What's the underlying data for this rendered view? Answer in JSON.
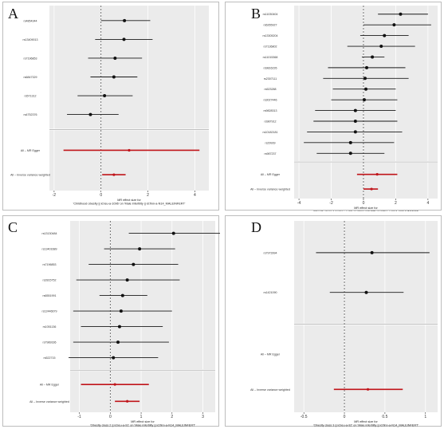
{
  "colors": {
    "panel_bg": "#ebebeb",
    "grid": "#ffffff",
    "point": "#111111",
    "snp_line": "#1a1a1a",
    "summary": "#c0141a",
    "zero_line": "#555555"
  },
  "chart_data": [
    {
      "panel": "A",
      "type": "forest",
      "xlabel": "MR effect size for\n'Childhood obesity || id:ieu-a-1096' on 'Male infertility || id:finn-a-N14_MALEINFERT'",
      "xlim": [
        -2.2,
        4.6
      ],
      "xticks": [
        -2,
        0,
        2,
        4
      ],
      "snps": [
        {
          "label": "rs4854344",
          "b": 1.0,
          "lo": 0.0,
          "hi": 2.1
        },
        {
          "label": "rs13409013",
          "b": 0.98,
          "lo": -0.25,
          "hi": 2.2
        },
        {
          "label": "rs7196853",
          "b": 0.6,
          "lo": -0.55,
          "hi": 1.75
        },
        {
          "label": "rs6847329",
          "b": 0.55,
          "lo": -0.45,
          "hi": 1.55
        },
        {
          "label": "rs571312",
          "b": 0.15,
          "lo": -1.0,
          "hi": 1.35
        },
        {
          "label": "rs4752376",
          "b": -0.45,
          "lo": -1.45,
          "hi": 0.75
        }
      ],
      "summary": [
        {
          "label": "All – MR Egger",
          "b": 1.2,
          "lo": -1.6,
          "hi": 4.2
        },
        {
          "label": "All – Inverse variance weighted",
          "b": 0.55,
          "lo": 0.05,
          "hi": 1.05
        }
      ]
    },
    {
      "panel": "B",
      "type": "forest",
      "xlabel": "MR effect size for\n'Obesity class 1 || id:ieu-a-90' on 'Male infertility || id:finn-a-N14_MALEINFERT'",
      "xlim": [
        -4.3,
        4.6
      ],
      "xticks": [
        -4,
        -2,
        0,
        2,
        4
      ],
      "snps": [
        {
          "label": "rs11030404",
          "b": 2.3,
          "lo": 0.9,
          "hi": 4.0
        },
        {
          "label": "rs6265927",
          "b": 1.9,
          "lo": 0.0,
          "hi": 4.2
        },
        {
          "label": "rs13305204",
          "b": 1.3,
          "lo": -0.2,
          "hi": 2.8
        },
        {
          "label": "rs7136802",
          "b": 1.1,
          "lo": -1.0,
          "hi": 3.2
        },
        {
          "label": "rs11015368",
          "b": 0.55,
          "lo": -0.1,
          "hi": 1.3
        },
        {
          "label": "rs9816226",
          "b": 0.2,
          "lo": -2.2,
          "hi": 2.6
        },
        {
          "label": "rs2307111",
          "b": 0.1,
          "lo": -2.5,
          "hi": 2.8
        },
        {
          "label": "rs523288",
          "b": 0.15,
          "lo": -1.9,
          "hi": 2.0
        },
        {
          "label": "rs3027446",
          "b": 0.05,
          "lo": -2.0,
          "hi": 2.1
        },
        {
          "label": "rs9828313",
          "b": -0.5,
          "lo": -3.0,
          "hi": 2.0
        },
        {
          "label": "rs987912",
          "b": -0.5,
          "lo": -3.1,
          "hi": 2.1
        },
        {
          "label": "rs10182181",
          "b": -0.5,
          "lo": -3.5,
          "hi": 2.4
        },
        {
          "label": "rs29939",
          "b": -0.8,
          "lo": -3.7,
          "hi": 1.9
        },
        {
          "label": "rs987237",
          "b": -0.8,
          "lo": -2.9,
          "hi": 1.3
        }
      ],
      "summary": [
        {
          "label": "All – MR Egger",
          "b": 0.85,
          "lo": -0.4,
          "hi": 2.1
        },
        {
          "label": "All – Inverse variance weighted",
          "b": 0.5,
          "lo": 0.0,
          "hi": 0.9
        }
      ]
    },
    {
      "panel": "C",
      "type": "forest",
      "xlabel": "MR effect size for\n'Obesity class 2 || id:ieu-a-91' on 'Male infertility || id:finn-a-N14_MALEINFERT'",
      "xlim": [
        -1.3,
        3.4
      ],
      "xticks": [
        -1,
        0,
        1,
        2,
        3
      ],
      "snps": [
        {
          "label": "rs13130484",
          "b": 2.05,
          "lo": 0.6,
          "hi": 3.6
        },
        {
          "label": "rs13401689",
          "b": 0.95,
          "lo": -0.2,
          "hi": 2.1
        },
        {
          "label": "rs7196853",
          "b": 0.75,
          "lo": -0.7,
          "hi": 2.2
        },
        {
          "label": "rs2815752",
          "b": 0.55,
          "lo": -1.1,
          "hi": 2.25
        },
        {
          "label": "rs6551991",
          "b": 0.4,
          "lo": -0.35,
          "hi": 1.2
        },
        {
          "label": "rs12446679",
          "b": 0.35,
          "lo": -1.2,
          "hi": 2.0
        },
        {
          "label": "rs1051136",
          "b": 0.3,
          "lo": -0.95,
          "hi": 1.7
        },
        {
          "label": "rs7989336",
          "b": 0.25,
          "lo": -1.2,
          "hi": 1.9
        },
        {
          "label": "rs522715",
          "b": 0.1,
          "lo": -1.35,
          "hi": 1.55
        }
      ],
      "summary": [
        {
          "label": "All – MR Egger",
          "b": 0.15,
          "lo": -0.95,
          "hi": 1.25
        },
        {
          "label": "All – Inverse variance weighted",
          "b": 0.55,
          "lo": 0.15,
          "hi": 0.95
        }
      ]
    },
    {
      "panel": "D",
      "type": "forest",
      "xlabel": "MR effect size for\n'Obesity class 3 || id:ieu-a-92' on 'Male infertility || id:finn-a-N14_MALEINFERT'",
      "xlim": [
        -0.62,
        1.15
      ],
      "xticks": [
        -0.5,
        0.0,
        0.5,
        1.0
      ],
      "snps": [
        {
          "label": "rs7973994",
          "b": 0.34,
          "lo": -0.35,
          "hi": 1.05
        },
        {
          "label": "rs1421090",
          "b": 0.27,
          "lo": -0.18,
          "hi": 0.73
        }
      ],
      "summary": [
        {
          "label": "All – MR Egger",
          "b": null,
          "lo": null,
          "hi": null
        },
        {
          "label": "All – Inverse variance weighted",
          "b": 0.29,
          "lo": -0.13,
          "hi": 0.72
        }
      ]
    }
  ],
  "panels": {
    "A": {
      "letter": "A"
    },
    "B": {
      "letter": "B"
    },
    "C": {
      "letter": "C"
    },
    "D": {
      "letter": "D"
    }
  }
}
